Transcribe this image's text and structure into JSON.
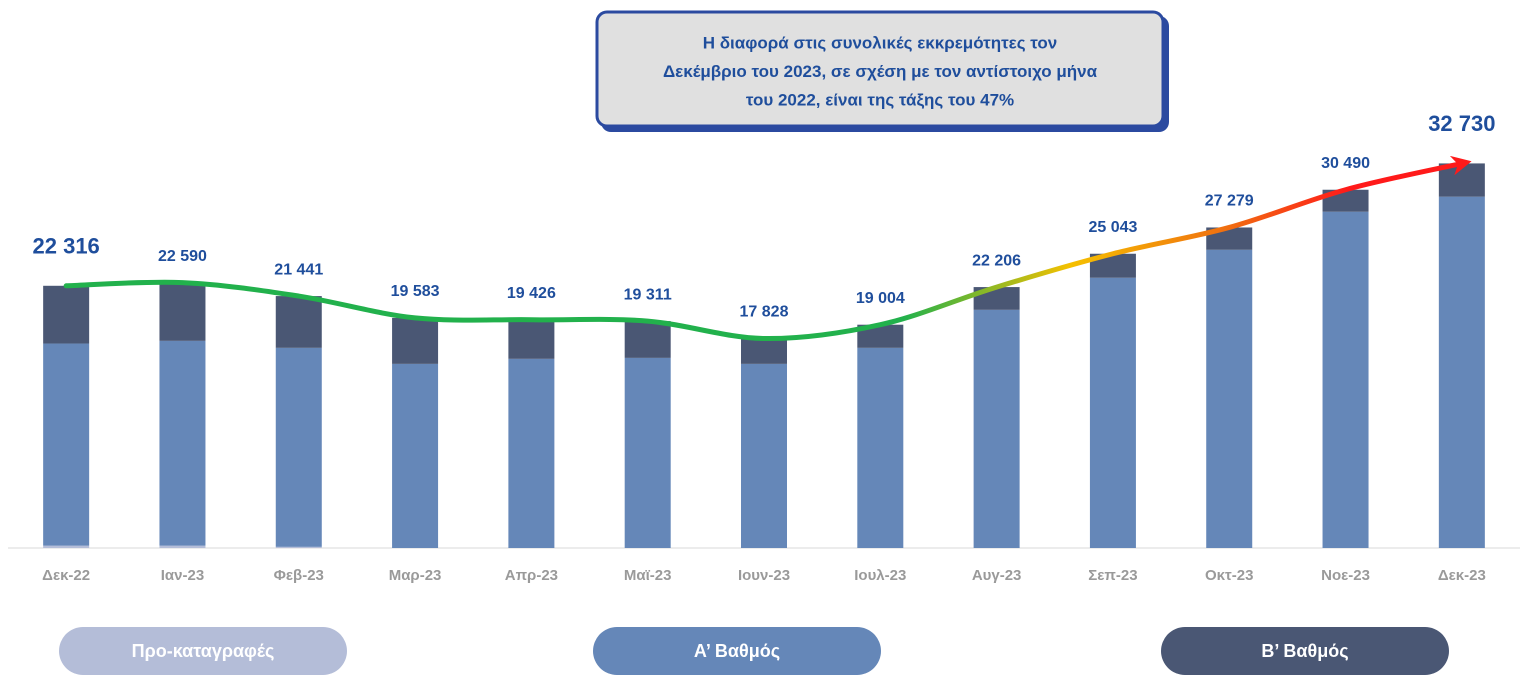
{
  "chart_data": {
    "type": "stacked_bar",
    "categories": [
      "Δεκ-22",
      "Ιαν-23",
      "Φεβ-23",
      "Μαρ-23",
      "Απρ-23",
      "Μαϊ-23",
      "Ιουν-23",
      "Ιουλ-23",
      "Αυγ-23",
      "Σεπ-23",
      "Οκτ-23",
      "Νοε-23",
      "Δεκ-23"
    ],
    "series": [
      {
        "name": "Προ-καταγραφές",
        "color": "#b4bdd8",
        "values": [
          200,
          200,
          100,
          0,
          0,
          0,
          0,
          0,
          0,
          0,
          0,
          0,
          0
        ]
      },
      {
        "name": "Α’ Βαθμός",
        "color": "#6587b8",
        "values": [
          17200,
          17430,
          16935,
          15670,
          16100,
          16180,
          15670,
          17035,
          20270,
          23000,
          25380,
          28620,
          29900
        ]
      },
      {
        "name": "Β’ Βαθμός",
        "color": "#4a5774",
        "values": [
          4916,
          4960,
          4406,
          3913,
          3326,
          3131,
          2158,
          1969,
          1936,
          2043,
          1899,
          1870,
          2830
        ]
      }
    ],
    "totals": [
      22316,
      22590,
      21441,
      19583,
      19426,
      19311,
      17828,
      19004,
      22206,
      25043,
      27279,
      30490,
      32730
    ],
    "total_labels": [
      "22 316",
      "22 590",
      "21 441",
      "19 583",
      "19 426",
      "19 311",
      "17 828",
      "19 004",
      "22 206",
      "25 043",
      "27 279",
      "30 490",
      "32 730"
    ],
    "ylim": [
      0,
      36000
    ],
    "annotation": [
      "Η διαφορά στις συνολικές εκκρεμότητες τον",
      "Δεκέμβριο του 2023, σε σχέση με τον αντίστοιχο μήνα",
      "του 2022, είναι της τάξης του 47%"
    ]
  }
}
